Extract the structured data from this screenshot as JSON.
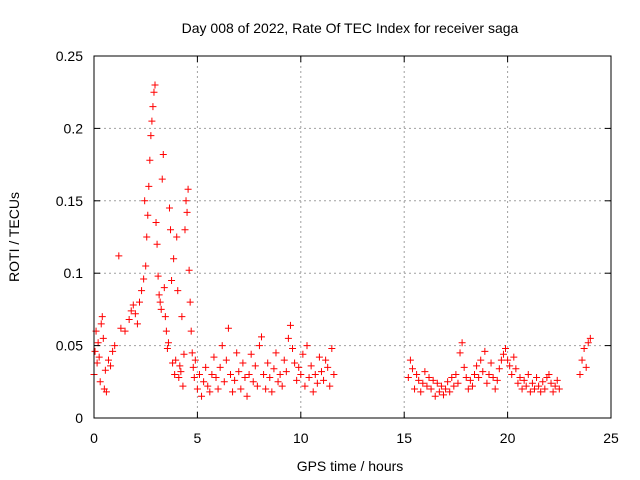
{
  "chart_data": {
    "type": "scatter",
    "title": "Day 008 of 2022, Rate Of TEC Index for receiver saga",
    "xlabel": "GPS time / hours",
    "ylabel": "ROTI / TECUs",
    "xlim": [
      0,
      25
    ],
    "ylim": [
      0,
      0.25
    ],
    "x_ticks": [
      "0",
      "5",
      "10",
      "15",
      "20",
      "25"
    ],
    "y_ticks": [
      "0",
      "0.05",
      "0.1",
      "0.15",
      "0.2",
      "0.25"
    ],
    "grid": true,
    "marker": "plus",
    "color": "#ff0000",
    "series": [
      {
        "points": [
          [
            0.0,
            0.03
          ],
          [
            0.05,
            0.046
          ],
          [
            0.1,
            0.06
          ],
          [
            0.15,
            0.038
          ],
          [
            0.2,
            0.052
          ],
          [
            0.25,
            0.042
          ],
          [
            0.3,
            0.025
          ],
          [
            0.35,
            0.065
          ],
          [
            0.4,
            0.07
          ],
          [
            0.45,
            0.055
          ],
          [
            0.5,
            0.02
          ],
          [
            0.55,
            0.033
          ],
          [
            0.6,
            0.018
          ],
          [
            0.7,
            0.04
          ],
          [
            0.8,
            0.036
          ],
          [
            0.9,
            0.046
          ],
          [
            1.0,
            0.05
          ],
          [
            1.2,
            0.112
          ],
          [
            1.3,
            0.062
          ],
          [
            1.5,
            0.06
          ],
          [
            1.7,
            0.068
          ],
          [
            1.8,
            0.074
          ],
          [
            1.9,
            0.078
          ],
          [
            2.0,
            0.072
          ],
          [
            2.1,
            0.065
          ],
          [
            2.2,
            0.08
          ],
          [
            2.3,
            0.088
          ],
          [
            2.4,
            0.096
          ],
          [
            2.45,
            0.15
          ],
          [
            2.5,
            0.105
          ],
          [
            2.55,
            0.125
          ],
          [
            2.6,
            0.14
          ],
          [
            2.65,
            0.16
          ],
          [
            2.7,
            0.178
          ],
          [
            2.75,
            0.195
          ],
          [
            2.8,
            0.205
          ],
          [
            2.85,
            0.215
          ],
          [
            2.9,
            0.225
          ],
          [
            2.95,
            0.23
          ],
          [
            3.0,
            0.135
          ],
          [
            3.05,
            0.12
          ],
          [
            3.1,
            0.098
          ],
          [
            3.15,
            0.085
          ],
          [
            3.2,
            0.08
          ],
          [
            3.25,
            0.075
          ],
          [
            3.3,
            0.165
          ],
          [
            3.35,
            0.182
          ],
          [
            3.4,
            0.09
          ],
          [
            3.45,
            0.07
          ],
          [
            3.5,
            0.06
          ],
          [
            3.55,
            0.048
          ],
          [
            3.6,
            0.052
          ],
          [
            3.65,
            0.145
          ],
          [
            3.7,
            0.13
          ],
          [
            3.75,
            0.095
          ],
          [
            3.8,
            0.038
          ],
          [
            3.85,
            0.11
          ],
          [
            3.9,
            0.03
          ],
          [
            3.95,
            0.04
          ],
          [
            4.0,
            0.125
          ],
          [
            4.05,
            0.088
          ],
          [
            4.1,
            0.028
          ],
          [
            4.15,
            0.036
          ],
          [
            4.2,
            0.032
          ],
          [
            4.25,
            0.07
          ],
          [
            4.3,
            0.022
          ],
          [
            4.35,
            0.044
          ],
          [
            4.4,
            0.13
          ],
          [
            4.45,
            0.15
          ],
          [
            4.5,
            0.142
          ],
          [
            4.55,
            0.158
          ],
          [
            4.6,
            0.102
          ],
          [
            4.65,
            0.08
          ],
          [
            4.7,
            0.06
          ],
          [
            4.75,
            0.045
          ],
          [
            4.8,
            0.035
          ],
          [
            4.85,
            0.028
          ],
          [
            4.9,
            0.04
          ],
          [
            5.0,
            0.02
          ],
          [
            5.1,
            0.03
          ],
          [
            5.2,
            0.015
          ],
          [
            5.3,
            0.025
          ],
          [
            5.4,
            0.035
          ],
          [
            5.5,
            0.022
          ],
          [
            5.6,
            0.018
          ],
          [
            5.7,
            0.03
          ],
          [
            5.8,
            0.042
          ],
          [
            5.9,
            0.028
          ],
          [
            6.0,
            0.02
          ],
          [
            6.1,
            0.035
          ],
          [
            6.2,
            0.05
          ],
          [
            6.3,
            0.025
          ],
          [
            6.4,
            0.04
          ],
          [
            6.5,
            0.062
          ],
          [
            6.6,
            0.03
          ],
          [
            6.7,
            0.018
          ],
          [
            6.8,
            0.026
          ],
          [
            6.9,
            0.045
          ],
          [
            7.0,
            0.032
          ],
          [
            7.1,
            0.02
          ],
          [
            7.2,
            0.038
          ],
          [
            7.3,
            0.028
          ],
          [
            7.4,
            0.015
          ],
          [
            7.5,
            0.03
          ],
          [
            7.6,
            0.044
          ],
          [
            7.7,
            0.025
          ],
          [
            7.8,
            0.036
          ],
          [
            7.9,
            0.022
          ],
          [
            8.0,
            0.05
          ],
          [
            8.1,
            0.056
          ],
          [
            8.2,
            0.03
          ],
          [
            8.3,
            0.02
          ],
          [
            8.4,
            0.038
          ],
          [
            8.5,
            0.028
          ],
          [
            8.6,
            0.018
          ],
          [
            8.7,
            0.034
          ],
          [
            8.8,
            0.045
          ],
          [
            8.9,
            0.025
          ],
          [
            9.0,
            0.03
          ],
          [
            9.1,
            0.022
          ],
          [
            9.2,
            0.04
          ],
          [
            9.3,
            0.032
          ],
          [
            9.4,
            0.055
          ],
          [
            9.5,
            0.064
          ],
          [
            9.6,
            0.048
          ],
          [
            9.7,
            0.038
          ],
          [
            9.8,
            0.026
          ],
          [
            9.9,
            0.035
          ],
          [
            10.0,
            0.03
          ],
          [
            10.1,
            0.044
          ],
          [
            10.2,
            0.022
          ],
          [
            10.3,
            0.05
          ],
          [
            10.4,
            0.028
          ],
          [
            10.5,
            0.036
          ],
          [
            10.6,
            0.018
          ],
          [
            10.7,
            0.03
          ],
          [
            10.8,
            0.024
          ],
          [
            10.9,
            0.042
          ],
          [
            11.0,
            0.032
          ],
          [
            11.1,
            0.026
          ],
          [
            11.2,
            0.04
          ],
          [
            11.3,
            0.035
          ],
          [
            11.4,
            0.022
          ],
          [
            11.5,
            0.048
          ],
          [
            11.6,
            0.03
          ],
          [
            15.2,
            0.028
          ],
          [
            15.3,
            0.04
          ],
          [
            15.4,
            0.034
          ],
          [
            15.5,
            0.02
          ],
          [
            15.6,
            0.03
          ],
          [
            15.7,
            0.026
          ],
          [
            15.8,
            0.018
          ],
          [
            15.9,
            0.024
          ],
          [
            16.0,
            0.032
          ],
          [
            16.1,
            0.022
          ],
          [
            16.2,
            0.028
          ],
          [
            16.3,
            0.02
          ],
          [
            16.4,
            0.026
          ],
          [
            16.5,
            0.015
          ],
          [
            16.6,
            0.024
          ],
          [
            16.7,
            0.018
          ],
          [
            16.8,
            0.022
          ],
          [
            16.9,
            0.016
          ],
          [
            17.0,
            0.02
          ],
          [
            17.1,
            0.025
          ],
          [
            17.2,
            0.018
          ],
          [
            17.3,
            0.028
          ],
          [
            17.4,
            0.022
          ],
          [
            17.5,
            0.03
          ],
          [
            17.6,
            0.024
          ],
          [
            17.7,
            0.045
          ],
          [
            17.8,
            0.052
          ],
          [
            17.9,
            0.035
          ],
          [
            18.0,
            0.028
          ],
          [
            18.1,
            0.02
          ],
          [
            18.2,
            0.026
          ],
          [
            18.3,
            0.022
          ],
          [
            18.4,
            0.03
          ],
          [
            18.5,
            0.036
          ],
          [
            18.6,
            0.028
          ],
          [
            18.7,
            0.04
          ],
          [
            18.8,
            0.032
          ],
          [
            18.9,
            0.046
          ],
          [
            19.0,
            0.024
          ],
          [
            19.1,
            0.03
          ],
          [
            19.2,
            0.038
          ],
          [
            19.3,
            0.028
          ],
          [
            19.4,
            0.02
          ],
          [
            19.5,
            0.026
          ],
          [
            19.6,
            0.034
          ],
          [
            19.7,
            0.04
          ],
          [
            19.8,
            0.044
          ],
          [
            19.9,
            0.048
          ],
          [
            20.0,
            0.04
          ],
          [
            20.1,
            0.036
          ],
          [
            20.2,
            0.03
          ],
          [
            20.3,
            0.042
          ],
          [
            20.4,
            0.034
          ],
          [
            20.5,
            0.024
          ],
          [
            20.6,
            0.028
          ],
          [
            20.7,
            0.02
          ],
          [
            20.8,
            0.026
          ],
          [
            20.9,
            0.022
          ],
          [
            21.0,
            0.03
          ],
          [
            21.1,
            0.018
          ],
          [
            21.2,
            0.024
          ],
          [
            21.3,
            0.02
          ],
          [
            21.4,
            0.028
          ],
          [
            21.5,
            0.022
          ],
          [
            21.6,
            0.018
          ],
          [
            21.7,
            0.025
          ],
          [
            21.8,
            0.02
          ],
          [
            21.9,
            0.028
          ],
          [
            22.0,
            0.03
          ],
          [
            22.1,
            0.024
          ],
          [
            22.2,
            0.018
          ],
          [
            22.3,
            0.022
          ],
          [
            22.4,
            0.026
          ],
          [
            22.5,
            0.02
          ],
          [
            23.5,
            0.03
          ],
          [
            23.6,
            0.04
          ],
          [
            23.7,
            0.048
          ],
          [
            23.8,
            0.035
          ],
          [
            23.9,
            0.052
          ],
          [
            24.0,
            0.055
          ]
        ]
      }
    ]
  }
}
